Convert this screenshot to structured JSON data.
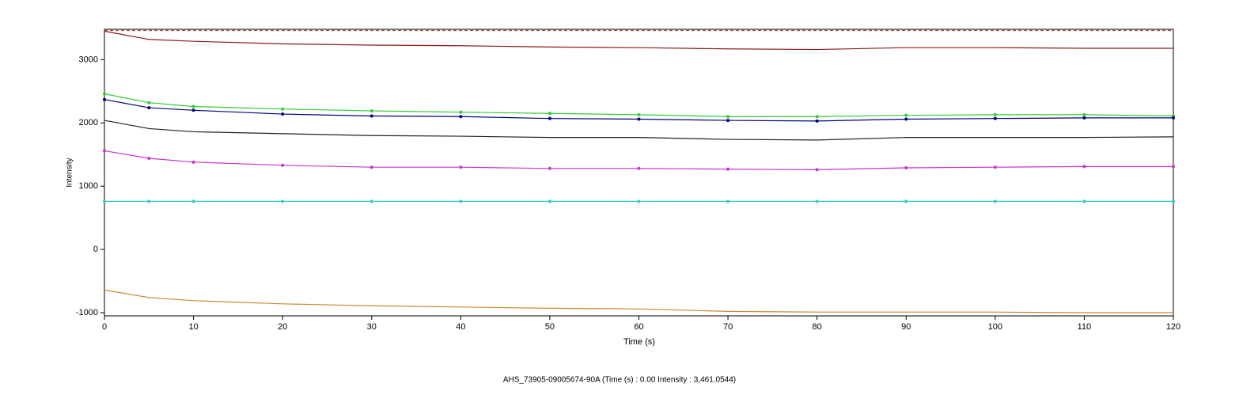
{
  "chart_data": {
    "type": "line",
    "x_label": "Time (s)",
    "y_label": "Intensity",
    "annotation": "AHS_73905-09005674-90A (Time (s) : 0.00  Intensity : 3,461.0544)",
    "x": [
      0,
      5,
      10,
      20,
      30,
      40,
      50,
      60,
      70,
      80,
      90,
      100,
      110,
      120
    ],
    "series": [
      {
        "color": "#a0522d",
        "dash": true,
        "marker": false,
        "values": [
          3461,
          3461,
          3461,
          3461,
          3461,
          3461,
          3461,
          3461,
          3461,
          3461,
          3461,
          3461,
          3461,
          3461
        ]
      },
      {
        "color": "#8b1a1a",
        "dash": false,
        "marker": false,
        "values": [
          3450,
          3320,
          3290,
          3250,
          3230,
          3220,
          3200,
          3190,
          3170,
          3160,
          3190,
          3190,
          3180,
          3180
        ]
      },
      {
        "color": "#33cc33",
        "dash": false,
        "marker": true,
        "values": [
          2460,
          2320,
          2260,
          2220,
          2190,
          2170,
          2150,
          2130,
          2100,
          2100,
          2120,
          2130,
          2130,
          2110
        ]
      },
      {
        "color": "#000080",
        "dash": false,
        "marker": true,
        "values": [
          2370,
          2240,
          2200,
          2140,
          2110,
          2100,
          2070,
          2060,
          2040,
          2030,
          2060,
          2070,
          2080,
          2080
        ]
      },
      {
        "color": "#222222",
        "dash": false,
        "marker": false,
        "values": [
          2040,
          1910,
          1860,
          1830,
          1800,
          1790,
          1770,
          1770,
          1740,
          1730,
          1770,
          1770,
          1770,
          1780
        ]
      },
      {
        "color": "#cc33cc",
        "dash": false,
        "marker": true,
        "values": [
          1560,
          1440,
          1380,
          1330,
          1300,
          1300,
          1280,
          1280,
          1270,
          1260,
          1290,
          1300,
          1310,
          1310
        ]
      },
      {
        "color": "#33cccc",
        "dash": false,
        "marker": true,
        "values": [
          760,
          760,
          760,
          760,
          760,
          760,
          760,
          760,
          760,
          760,
          760,
          760,
          760,
          760
        ]
      },
      {
        "color": "#cc8833",
        "dash": false,
        "marker": false,
        "values": [
          -640,
          -760,
          -810,
          -860,
          -890,
          -910,
          -930,
          -940,
          -980,
          -990,
          -990,
          -990,
          -1000,
          -1000
        ]
      }
    ],
    "xlim": [
      0,
      120
    ],
    "xticks": [
      0,
      10,
      20,
      30,
      40,
      50,
      60,
      70,
      80,
      90,
      100,
      110,
      120
    ],
    "ylim": [
      -1050,
      3480
    ],
    "yticks": [
      -1000,
      0,
      1000,
      2000,
      3000
    ]
  }
}
